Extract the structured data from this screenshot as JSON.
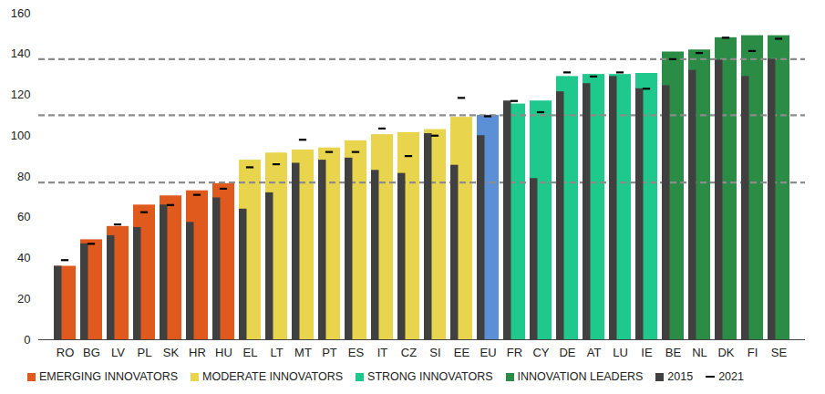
{
  "chart_data": {
    "type": "bar",
    "categories": [
      "RO",
      "BG",
      "LV",
      "PL",
      "SK",
      "HR",
      "HU",
      "EL",
      "LT",
      "MT",
      "PT",
      "ES",
      "IT",
      "CZ",
      "SI",
      "EE",
      "EU",
      "FR",
      "CY",
      "DE",
      "AT",
      "LU",
      "IE",
      "BE",
      "NL",
      "DK",
      "FI",
      "SE"
    ],
    "series": [
      {
        "name": "EMERGING INNOVATORS",
        "type": "bar",
        "color": "#e05a1e",
        "values": [
          36,
          49,
          55.5,
          66,
          70.5,
          73,
          76.5,
          null,
          null,
          null,
          null,
          null,
          null,
          null,
          null,
          null,
          null,
          null,
          null,
          null,
          null,
          null,
          null,
          null,
          null,
          null,
          null,
          null
        ]
      },
      {
        "name": "MODERATE INNOVATORS",
        "type": "bar",
        "color": "#e8d44d",
        "values": [
          null,
          null,
          null,
          null,
          null,
          null,
          null,
          88,
          91.5,
          93,
          94,
          97.5,
          100.5,
          101.5,
          103,
          109,
          null,
          null,
          null,
          null,
          null,
          null,
          null,
          null,
          null,
          null,
          null,
          null
        ]
      },
      {
        "name": "STRONG INNOVATORS",
        "type": "bar",
        "color": "#1fc98e",
        "values": [
          null,
          null,
          null,
          null,
          null,
          null,
          null,
          null,
          null,
          null,
          null,
          null,
          null,
          null,
          null,
          null,
          null,
          115.5,
          117,
          129,
          130,
          130,
          130.5,
          null,
          null,
          null,
          null,
          null
        ]
      },
      {
        "name": "INNOVATION LEADERS",
        "type": "bar",
        "color": "#2a8c45",
        "values": [
          null,
          null,
          null,
          null,
          null,
          null,
          null,
          null,
          null,
          null,
          null,
          null,
          null,
          null,
          null,
          null,
          null,
          null,
          null,
          null,
          null,
          null,
          null,
          141,
          142,
          148,
          149,
          149
        ]
      },
      {
        "type": "bar",
        "color": "#5b8fd6",
        "values": [
          null,
          null,
          null,
          null,
          null,
          null,
          null,
          null,
          null,
          null,
          null,
          null,
          null,
          null,
          null,
          null,
          110,
          null,
          null,
          null,
          null,
          null,
          null,
          null,
          null,
          null,
          null,
          null
        ]
      },
      {
        "name": "2015",
        "type": "overlay",
        "color": "#404040",
        "values": [
          36,
          47,
          51,
          55,
          66,
          57.5,
          69.5,
          64,
          72,
          86.5,
          88,
          89,
          83,
          81.5,
          101,
          85.5,
          100,
          117,
          79,
          121.5,
          125.5,
          129,
          123,
          124.5,
          132,
          137,
          129,
          137.5
        ]
      },
      {
        "name": "2021",
        "type": "tick",
        "marker": "dash",
        "color": "#000000",
        "values": [
          39,
          47,
          56.5,
          62.5,
          66,
          71,
          74,
          84.5,
          86,
          98,
          92,
          92,
          103.5,
          90,
          100,
          118.5,
          109.5,
          117,
          111.5,
          131,
          129,
          131,
          123,
          137.5,
          140.5,
          148,
          141.5,
          147.5
        ]
      }
    ],
    "reference_lines": [
      77,
      110,
      137.5
    ],
    "ylim": [
      0,
      160
    ],
    "yticks": [
      0,
      20,
      40,
      60,
      80,
      100,
      120,
      140,
      160
    ],
    "grid": false,
    "legend": "bottom"
  }
}
